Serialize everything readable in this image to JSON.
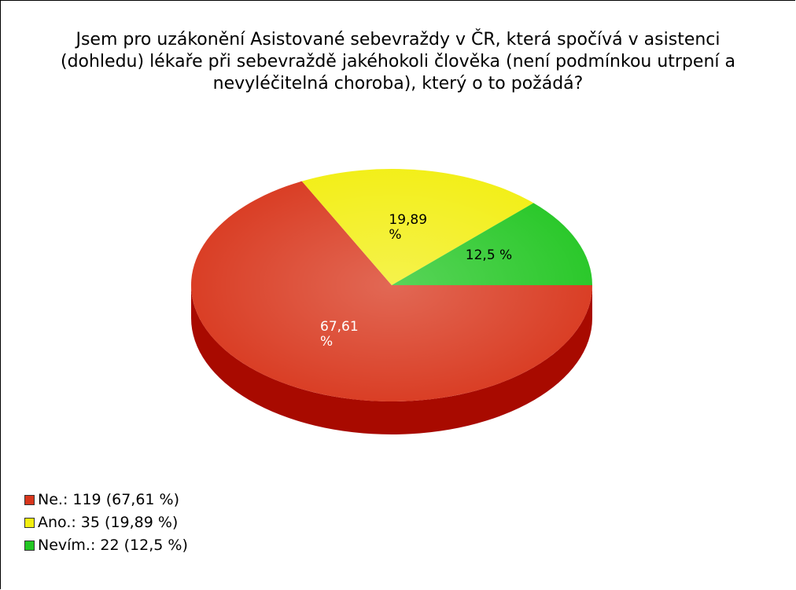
{
  "chart_data": {
    "type": "pie",
    "title": "Jsem pro uzákonění Asistované sebevraždy v ČR, která spočívá v asistenci (dohledu) lékaře při sebevraždě jakéhokoli člověka (není podmínkou utrpení a nevyléčitelná choroba), který o to požádá?",
    "categories": [
      "Ne.",
      "Ano.",
      "Nevím."
    ],
    "values": [
      67.61,
      19.89,
      12.5
    ],
    "value_labels": [
      "67,61 %",
      "19,89 %",
      "12,5 %"
    ],
    "legend_labels": [
      "Ne.: 119 (67,61 %)",
      "Ano.: 35 (19,89 %)",
      "Nevím.: 22 (12,5 %)"
    ],
    "colors": [
      "#d8361c",
      "#f2ee10",
      "#22c622"
    ],
    "side_colors": [
      "#a80a00",
      "#b0aa00",
      "#109010"
    ],
    "legend": "bottom-left"
  }
}
